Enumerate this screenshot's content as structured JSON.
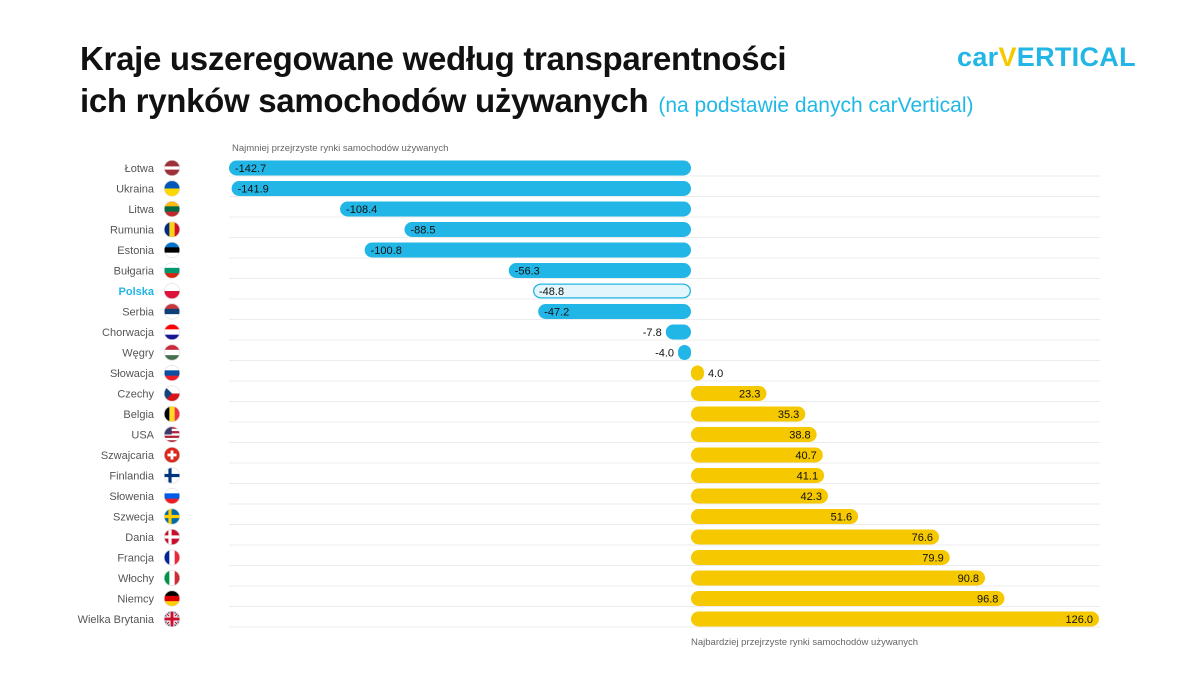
{
  "header": {
    "title_line1": "Kraje uszeregowane według transparentności",
    "title_line2": "ich rynków samochodów używanych",
    "subtitle": "(na podstawie danych carVertical)",
    "logo_part1": "car",
    "logo_part2": "V",
    "logo_part3": "ERTICAL"
  },
  "colors": {
    "negative": "#22b6e6",
    "positive": "#f6c800",
    "highlight_fill": "#e3f6fc",
    "highlight_text": "#22b6e6",
    "title": "#111111"
  },
  "chart_data": {
    "type": "bar",
    "orientation": "horizontal",
    "title": "Kraje uszeregowane według transparentności ich rynków samochodów używanych",
    "subtitle": "(na podstawie danych carVertical)",
    "categories": [
      "Łotwa",
      "Ukraina",
      "Litwa",
      "Rumunia",
      "Estonia",
      "Bułgaria",
      "Polska",
      "Serbia",
      "Chorwacja",
      "Węgry",
      "Słowacja",
      "Czechy",
      "Belgia",
      "USA",
      "Szwajcaria",
      "Finlandia",
      "Słowenia",
      "Szwecja",
      "Dania",
      "Francja",
      "Włochy",
      "Niemcy",
      "Wielka Brytania"
    ],
    "values": [
      -142.7,
      -141.9,
      -108.4,
      -88.5,
      -100.8,
      -56.3,
      -48.8,
      -47.2,
      -7.8,
      -4.0,
      4.0,
      23.3,
      35.3,
      38.8,
      40.7,
      41.1,
      42.3,
      51.6,
      76.6,
      79.9,
      90.8,
      96.8,
      126.0
    ],
    "value_labels": [
      "-142.7",
      "-141.9",
      "-108.4",
      "-88.5",
      "-100.8",
      "-56.3",
      "-48.8",
      "-47.2",
      "-7.8",
      "-4.0",
      "4.0",
      "23.3",
      "35.3",
      "38.8",
      "40.7",
      "41.1",
      "42.3",
      "51.6",
      "76.6",
      "79.9",
      "90.8",
      "96.8",
      "126.0"
    ],
    "highlight": "Polska",
    "xlim": [
      -142.7,
      126.0
    ],
    "annotations": {
      "top": "Najmniej przejrzyste rynki samochodów używanych",
      "bottom": "Najbardziej przejrzyste rynki samochodów używanych"
    },
    "grid": true,
    "flags": [
      {
        "country": "Łotwa",
        "type": "h",
        "colors": [
          "#9e3039",
          "#ffffff",
          "#9e3039"
        ],
        "weights": [
          2,
          1,
          2
        ]
      },
      {
        "country": "Ukraina",
        "type": "h",
        "colors": [
          "#0057b7",
          "#ffd700"
        ],
        "weights": [
          1,
          1
        ]
      },
      {
        "country": "Litwa",
        "type": "h",
        "colors": [
          "#fdb913",
          "#006a44",
          "#c1272d"
        ],
        "weights": [
          1,
          1,
          1
        ]
      },
      {
        "country": "Rumunia",
        "type": "v",
        "colors": [
          "#002b7f",
          "#fcd116",
          "#ce1126"
        ],
        "weights": [
          1,
          1,
          1
        ]
      },
      {
        "country": "Estonia",
        "type": "h",
        "colors": [
          "#0072ce",
          "#000000",
          "#ffffff"
        ],
        "weights": [
          1,
          1,
          1
        ]
      },
      {
        "country": "Bułgaria",
        "type": "h",
        "colors": [
          "#ffffff",
          "#00966e",
          "#d62612"
        ],
        "weights": [
          1,
          1,
          1
        ]
      },
      {
        "country": "Polska",
        "type": "h",
        "colors": [
          "#ffffff",
          "#dc143c"
        ],
        "weights": [
          1,
          1
        ]
      },
      {
        "country": "Serbia",
        "type": "h",
        "colors": [
          "#c6363c",
          "#0c4076",
          "#ffffff"
        ],
        "weights": [
          1,
          1,
          1
        ]
      },
      {
        "country": "Chorwacja",
        "type": "h",
        "colors": [
          "#ff0000",
          "#ffffff",
          "#171796"
        ],
        "weights": [
          1,
          1,
          1
        ]
      },
      {
        "country": "Węgry",
        "type": "h",
        "colors": [
          "#cd2a3e",
          "#ffffff",
          "#436f4d"
        ],
        "weights": [
          1,
          1,
          1
        ]
      },
      {
        "country": "Słowacja",
        "type": "h",
        "colors": [
          "#ffffff",
          "#0b4ea2",
          "#ee1c25"
        ],
        "weights": [
          1,
          1,
          1
        ]
      },
      {
        "country": "Czechy",
        "type": "czech",
        "colors": [
          "#ffffff",
          "#d7141a",
          "#11457e"
        ]
      },
      {
        "country": "Belgia",
        "type": "v",
        "colors": [
          "#000000",
          "#fdda24",
          "#ef3340"
        ],
        "weights": [
          1,
          1,
          1
        ]
      },
      {
        "country": "USA",
        "type": "usa",
        "colors": [
          "#b22234",
          "#ffffff",
          "#3c3b6e"
        ]
      },
      {
        "country": "Szwajcaria",
        "type": "cross",
        "colors": [
          "#da291c",
          "#ffffff"
        ]
      },
      {
        "country": "Finlandia",
        "type": "nordic",
        "colors": [
          "#ffffff",
          "#003580"
        ]
      },
      {
        "country": "Słowenia",
        "type": "h",
        "colors": [
          "#ffffff",
          "#005ce6",
          "#ed1c24"
        ],
        "weights": [
          1,
          1,
          1
        ]
      },
      {
        "country": "Szwecja",
        "type": "nordic",
        "colors": [
          "#006aa7",
          "#fecc00"
        ]
      },
      {
        "country": "Dania",
        "type": "nordic",
        "colors": [
          "#c8102e",
          "#ffffff"
        ]
      },
      {
        "country": "Francja",
        "type": "v",
        "colors": [
          "#002395",
          "#ffffff",
          "#ed2939"
        ],
        "weights": [
          1,
          1,
          1
        ]
      },
      {
        "country": "Włochy",
        "type": "v",
        "colors": [
          "#009246",
          "#ffffff",
          "#ce2b37"
        ],
        "weights": [
          1,
          1,
          1
        ]
      },
      {
        "country": "Niemcy",
        "type": "h",
        "colors": [
          "#000000",
          "#dd0000",
          "#ffce00"
        ],
        "weights": [
          1,
          1,
          1
        ]
      },
      {
        "country": "Wielka Brytania",
        "type": "uk",
        "colors": [
          "#012169",
          "#ffffff",
          "#c8102e"
        ]
      }
    ]
  }
}
